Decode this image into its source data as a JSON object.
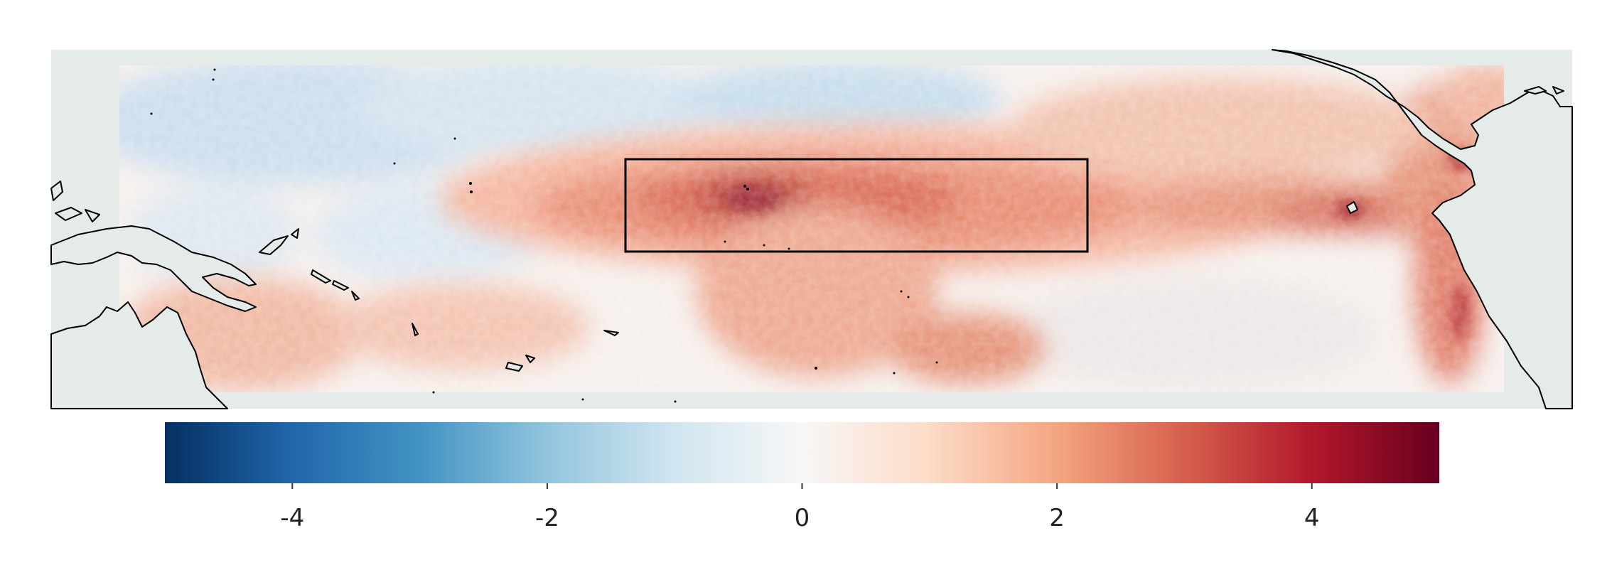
{
  "map": {
    "background_color": "#e4ebe8",
    "land_outline_color": "#000000",
    "highlight_box_color": "#000000"
  },
  "colorbar": {
    "min": -5,
    "max": 5,
    "ticks": [
      {
        "value": -4,
        "label": "-4"
      },
      {
        "value": -2,
        "label": "-2"
      },
      {
        "value": 0,
        "label": "0"
      },
      {
        "value": 2,
        "label": "2"
      },
      {
        "value": 4,
        "label": "4"
      }
    ],
    "colormap": [
      "#053061",
      "#2166ac",
      "#4393c3",
      "#92c5de",
      "#d1e5f0",
      "#f7f7f7",
      "#fddbc7",
      "#f4a582",
      "#d6604d",
      "#b2182b",
      "#67001f"
    ]
  }
}
